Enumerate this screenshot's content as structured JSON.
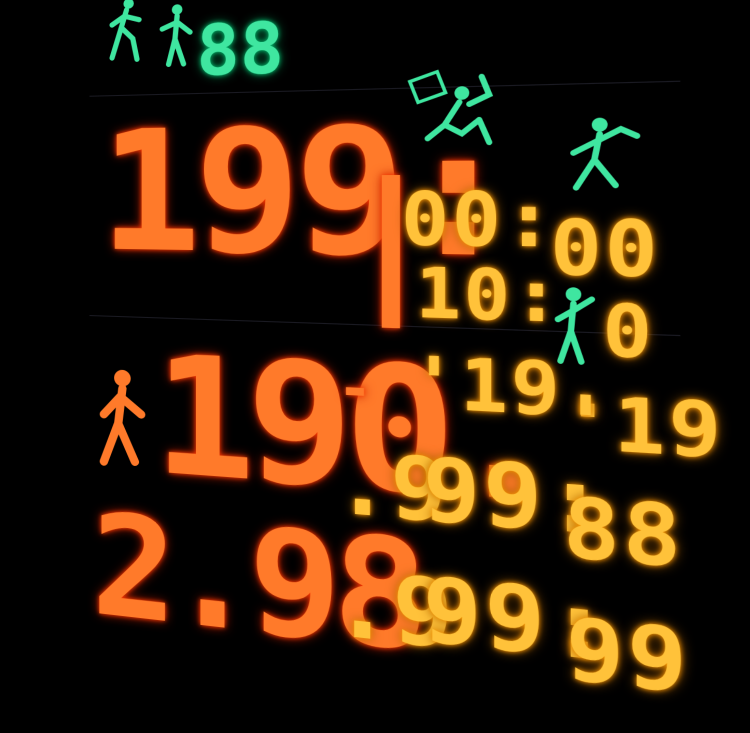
{
  "top_row": {
    "digits": "88"
  },
  "rows": [
    {
      "main": "199:",
      "bar": "|",
      "col_a": "00:",
      "col_b": "00"
    },
    {
      "main": "",
      "bar": "",
      "col_a": "10:",
      "col_b": "0"
    },
    {
      "main": "190.",
      "bar": "-",
      "col_a": "'19.",
      "col_b": "'19"
    },
    {
      "main": "",
      "bar": ".9",
      "col_a": "99:",
      "col_b": "88"
    },
    {
      "main": "2.98",
      "bar": ".9",
      "col_a": "99:",
      "col_b": "99"
    }
  ],
  "icons": [
    "runner-icon",
    "pedestrian-pair-icon",
    "goalkeeper-icon",
    "thrower-icon",
    "fencer-icon",
    "walker-icon"
  ]
}
